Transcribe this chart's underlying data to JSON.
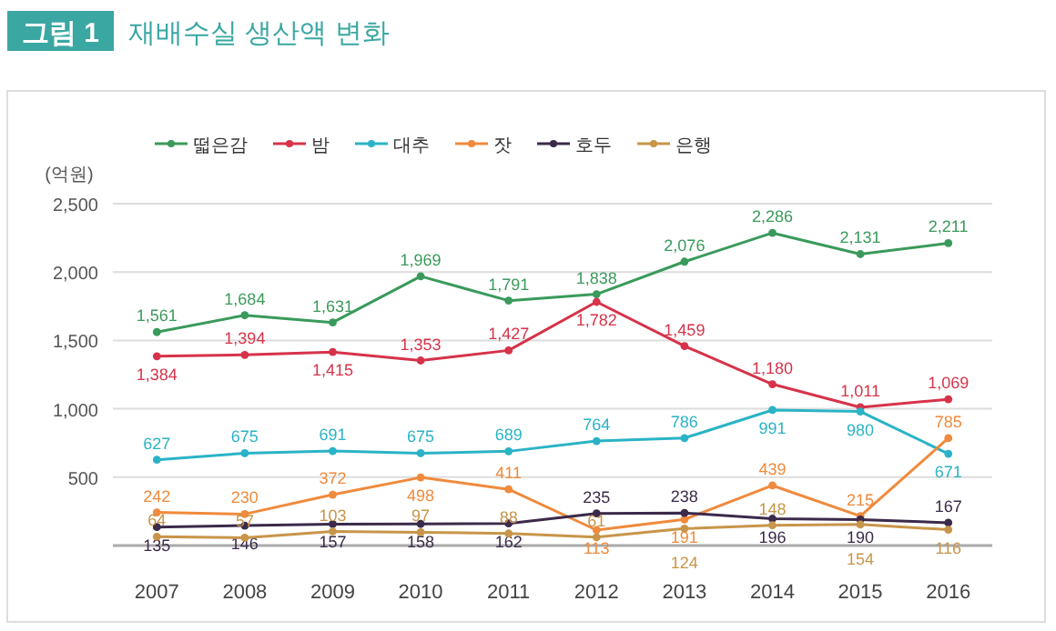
{
  "chart_data": {
    "type": "line",
    "title": "그림 1",
    "subtitle": "재배수실 생산액 변화",
    "ylabel": "(억원)",
    "categories": [
      "2007",
      "2008",
      "2009",
      "2010",
      "2011",
      "2012",
      "2013",
      "2014",
      "2015",
      "2016"
    ],
    "series": [
      {
        "name": "떫은감",
        "color": "#3a9a5b",
        "values": [
          1561,
          1684,
          1631,
          1969,
          1791,
          1838,
          2076,
          2286,
          2131,
          2211
        ],
        "value_labels": [
          "1,561",
          "1,684",
          "1,631",
          "1,969",
          "1,791",
          "1,838",
          "2,076",
          "2,286",
          "2,131",
          "2,211"
        ]
      },
      {
        "name": "밤",
        "color": "#d6334a",
        "values": [
          1384,
          1394,
          1415,
          1353,
          1427,
          1782,
          1459,
          1180,
          1011,
          1069
        ],
        "value_labels": [
          "1,384",
          "1,394",
          "1,415",
          "1,353",
          "1,427",
          "1,782",
          "1,459",
          "1,180",
          "1,011",
          "1,069"
        ]
      },
      {
        "name": "대추",
        "color": "#2ab3c6",
        "values": [
          627,
          675,
          691,
          675,
          689,
          764,
          786,
          991,
          980,
          671
        ]
      },
      {
        "name": "잣",
        "color": "#f08a3c",
        "values": [
          242,
          230,
          372,
          498,
          411,
          113,
          191,
          439,
          215,
          785
        ]
      },
      {
        "name": "호두",
        "color": "#3b2a4a",
        "values": [
          135,
          146,
          157,
          158,
          162,
          235,
          238,
          196,
          190,
          167
        ]
      },
      {
        "name": "은행",
        "color": "#c8954a",
        "values": [
          64,
          57,
          103,
          97,
          88,
          61,
          124,
          148,
          154,
          116
        ]
      }
    ],
    "ylim": [
      0,
      2500
    ],
    "yticks": [
      {
        "value": 0,
        "label": null
      },
      500,
      {
        "value": 1000,
        "label": "1,000"
      },
      {
        "value": 1500,
        "label": "1,500"
      },
      {
        "value": 2000,
        "label": "2,000"
      },
      {
        "value": 2500,
        "label": "2,500"
      }
    ],
    "grid": "y",
    "legend": "top left",
    "marker": "circle",
    "line_style": "solid",
    "data_labels": true
  }
}
